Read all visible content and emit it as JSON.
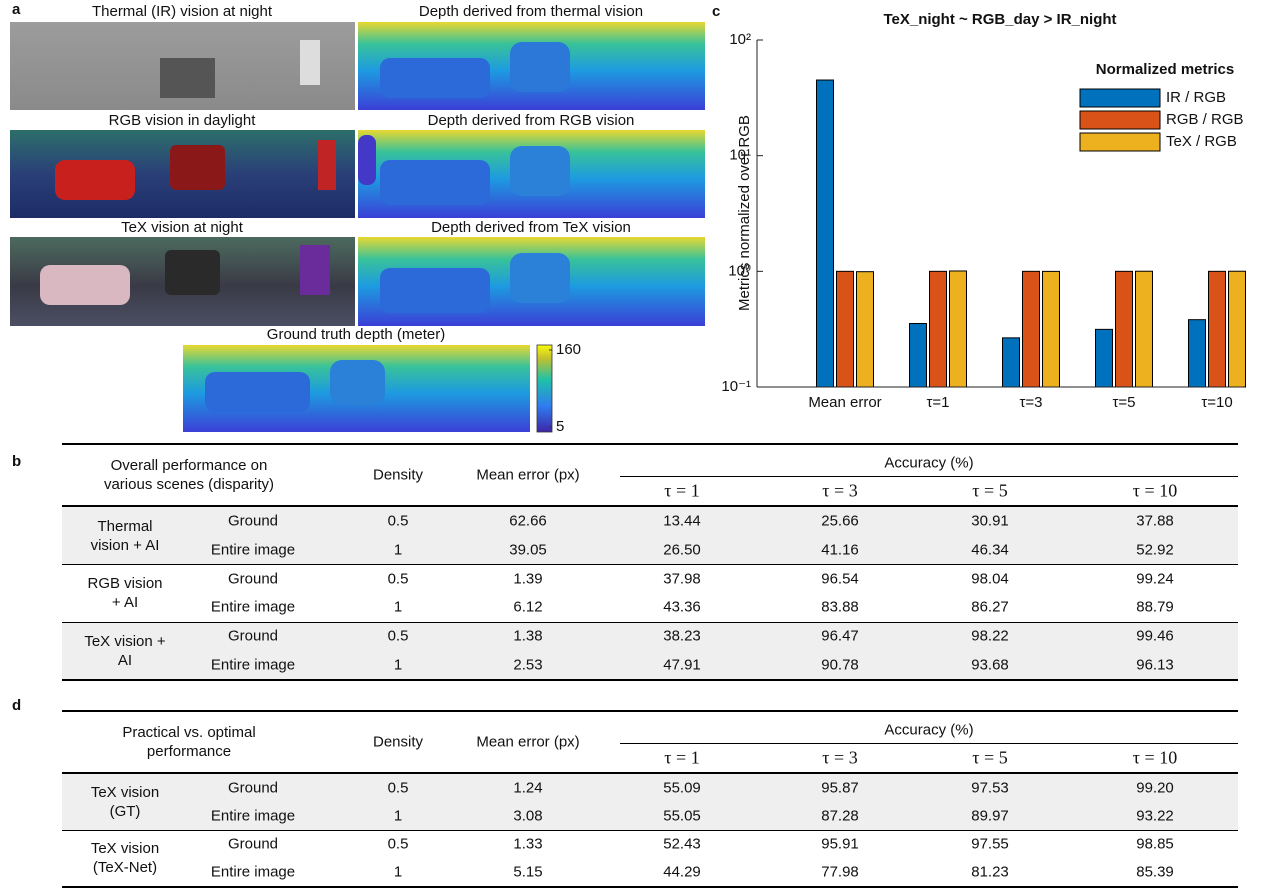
{
  "panel_labels": [
    "a",
    "b",
    "c",
    "d"
  ],
  "panel_a": {
    "images": [
      "Thermal (IR) vision at night",
      "Depth derived from thermal vision",
      "RGB vision in daylight",
      "Depth derived from RGB vision",
      "TeX vision at night",
      "Depth derived from TeX vision",
      "Ground truth depth (meter)"
    ],
    "colorbar_ticks": [
      5,
      160
    ]
  },
  "chart_data": {
    "type": "bar",
    "title": "TeX_night ~ RGB_day > IR_night",
    "y_label": "Metrics normalized over RGB",
    "categories": [
      "Mean error",
      "τ=1",
      "τ=3",
      "τ=5",
      "τ=10"
    ],
    "series": [
      {
        "name": "IR / RGB",
        "color": "#0072bd",
        "values": [
          45.08,
          0.354,
          0.266,
          0.315,
          0.382
        ]
      },
      {
        "name": "RGB / RGB",
        "color": "#d95319",
        "values": [
          1,
          1,
          1,
          1,
          1
        ]
      },
      {
        "name": "TeX / RGB",
        "color": "#edb120",
        "values": [
          0.993,
          1.007,
          0.999,
          1.002,
          1.002
        ]
      }
    ],
    "log_scale": true,
    "ylim": [
      0.1,
      100
    ],
    "yticks": [
      {
        "value": 0.1,
        "label": "10⁻¹"
      },
      {
        "value": 1,
        "label": "10⁰"
      },
      {
        "value": 10,
        "label": "10¹"
      },
      {
        "value": 100,
        "label": "10²"
      }
    ],
    "legend_title": "Normalized metrics",
    "legend": "upper right"
  },
  "table_b": {
    "header": {
      "scope": "Overall performance on various scenes (disparity)",
      "density": "Density",
      "mean_error": "Mean error (px)",
      "accuracy": "Accuracy (%)",
      "taus": [
        "τ = 1",
        "τ = 3",
        "τ = 5",
        "τ = 10"
      ]
    },
    "groups": [
      {
        "label": "Thermal vision + AI",
        "rows": [
          [
            "Ground",
            "0.5",
            "62.66",
            "13.44",
            "25.66",
            "30.91",
            "37.88"
          ],
          [
            "Entire image",
            "1",
            "39.05",
            "26.50",
            "41.16",
            "46.34",
            "52.92"
          ]
        ]
      },
      {
        "label": "RGB vision + AI",
        "rows": [
          [
            "Ground",
            "0.5",
            "1.39",
            "37.98",
            "96.54",
            "98.04",
            "99.24"
          ],
          [
            "Entire image",
            "1",
            "6.12",
            "43.36",
            "83.88",
            "86.27",
            "88.79"
          ]
        ]
      },
      {
        "label": "TeX vision + AI",
        "rows": [
          [
            "Ground",
            "0.5",
            "1.38",
            "38.23",
            "96.47",
            "98.22",
            "99.46"
          ],
          [
            "Entire image",
            "1",
            "2.53",
            "47.91",
            "90.78",
            "93.68",
            "96.13"
          ]
        ]
      }
    ]
  },
  "table_d": {
    "header": {
      "scope": "Practical vs. optimal performance",
      "density": "Density",
      "mean_error": "Mean error (px)",
      "accuracy": "Accuracy (%)",
      "taus": [
        "τ = 1",
        "τ = 3",
        "τ = 5",
        "τ = 10"
      ]
    },
    "groups": [
      {
        "label": "TeX vision (GT)",
        "rows": [
          [
            "Ground",
            "0.5",
            "1.24",
            "55.09",
            "95.87",
            "97.53",
            "99.20"
          ],
          [
            "Entire image",
            "1",
            "3.08",
            "55.05",
            "87.28",
            "89.97",
            "93.22"
          ]
        ]
      },
      {
        "label": "TeX vision (TeX-Net)",
        "rows": [
          [
            "Ground",
            "0.5",
            "1.33",
            "52.43",
            "95.91",
            "97.55",
            "98.85"
          ],
          [
            "Entire image",
            "1",
            "5.15",
            "44.29",
            "77.98",
            "81.23",
            "85.39"
          ]
        ]
      }
    ]
  }
}
